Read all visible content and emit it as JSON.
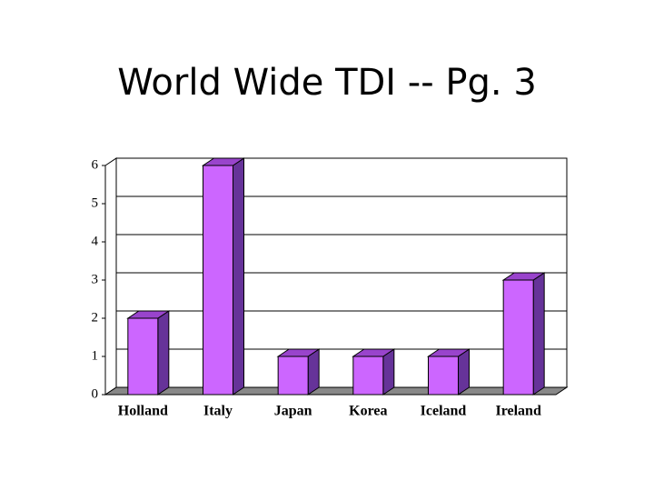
{
  "chart_data": {
    "type": "bar",
    "title": "World Wide TDI -- Pg. 3",
    "categories": [
      "Holland",
      "Italy",
      "Japan",
      "Korea",
      "Iceland",
      "Ireland"
    ],
    "values": [
      2,
      6,
      1,
      1,
      1,
      3
    ],
    "color": "#cc66ff",
    "ylim": [
      0,
      6
    ],
    "yticks": [
      0,
      1,
      2,
      3,
      4,
      5,
      6
    ],
    "grid": true
  }
}
